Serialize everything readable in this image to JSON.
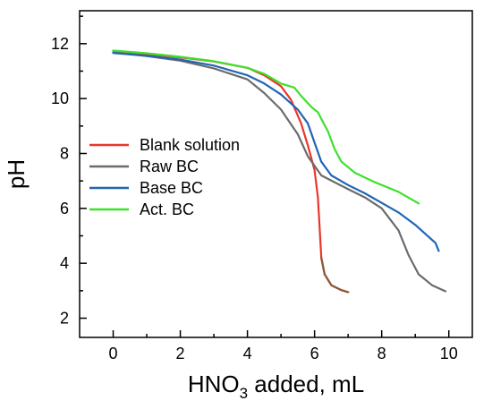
{
  "chart_data": {
    "type": "line",
    "xlabel": "HNO",
    "xlabel_subscript": "3",
    "xlabel_suffix": " added, mL",
    "ylabel": "pH",
    "xlim": [
      -1,
      10.7
    ],
    "ylim": [
      1.3,
      13.2
    ],
    "x_ticks": [
      0,
      2,
      4,
      6,
      8,
      10
    ],
    "y_ticks": [
      2,
      4,
      6,
      8,
      10,
      12
    ],
    "grid": false,
    "legend_position": "center-left",
    "series": [
      {
        "name": "Blank solution",
        "color": "#e8372c",
        "points": [
          [
            0,
            11.72
          ],
          [
            1,
            11.62
          ],
          [
            2,
            11.5
          ],
          [
            3,
            11.35
          ],
          [
            4,
            11.12
          ],
          [
            4.5,
            10.85
          ],
          [
            5,
            10.45
          ],
          [
            5.3,
            9.95
          ],
          [
            5.6,
            9.1
          ],
          [
            5.8,
            8.3
          ],
          [
            6.0,
            7.4
          ],
          [
            6.1,
            6.4
          ],
          [
            6.2,
            4.2
          ],
          [
            6.3,
            3.6
          ],
          [
            6.5,
            3.2
          ],
          [
            6.8,
            3.02
          ],
          [
            7.0,
            2.95
          ]
        ]
      },
      {
        "name": "Raw BC",
        "color": "#6b6b6b",
        "points": [
          [
            0,
            11.68
          ],
          [
            1,
            11.55
          ],
          [
            2,
            11.38
          ],
          [
            3,
            11.1
          ],
          [
            4,
            10.7
          ],
          [
            4.5,
            10.2
          ],
          [
            5,
            9.6
          ],
          [
            5.5,
            8.7
          ],
          [
            5.8,
            7.9
          ],
          [
            6.2,
            7.2
          ],
          [
            7,
            6.7
          ],
          [
            7.5,
            6.4
          ],
          [
            8,
            6.0
          ],
          [
            8.5,
            5.2
          ],
          [
            8.8,
            4.3
          ],
          [
            9.1,
            3.6
          ],
          [
            9.5,
            3.2
          ],
          [
            9.9,
            2.98
          ]
        ]
      },
      {
        "name": "Base BC",
        "color": "#1f66b5",
        "points": [
          [
            0,
            11.66
          ],
          [
            1,
            11.56
          ],
          [
            2,
            11.42
          ],
          [
            3,
            11.2
          ],
          [
            4,
            10.85
          ],
          [
            4.5,
            10.55
          ],
          [
            5,
            10.15
          ],
          [
            5.5,
            9.6
          ],
          [
            5.8,
            9.1
          ],
          [
            6.0,
            8.4
          ],
          [
            6.2,
            7.7
          ],
          [
            6.5,
            7.2
          ],
          [
            7,
            6.85
          ],
          [
            7.5,
            6.55
          ],
          [
            8,
            6.2
          ],
          [
            8.5,
            5.85
          ],
          [
            9,
            5.4
          ],
          [
            9.5,
            4.85
          ],
          [
            9.6,
            4.75
          ],
          [
            9.7,
            4.45
          ]
        ]
      },
      {
        "name": "Act. BC",
        "color": "#3ce22b",
        "points": [
          [
            0,
            11.75
          ],
          [
            1,
            11.65
          ],
          [
            2,
            11.52
          ],
          [
            3,
            11.36
          ],
          [
            4,
            11.12
          ],
          [
            4.5,
            10.9
          ],
          [
            5,
            10.55
          ],
          [
            5.4,
            10.4
          ],
          [
            5.6,
            10.1
          ],
          [
            5.9,
            9.7
          ],
          [
            6.1,
            9.5
          ],
          [
            6.4,
            8.8
          ],
          [
            6.6,
            8.15
          ],
          [
            6.8,
            7.7
          ],
          [
            7.2,
            7.3
          ],
          [
            7.8,
            6.95
          ],
          [
            8.5,
            6.6
          ],
          [
            9.1,
            6.18
          ]
        ]
      }
    ]
  }
}
